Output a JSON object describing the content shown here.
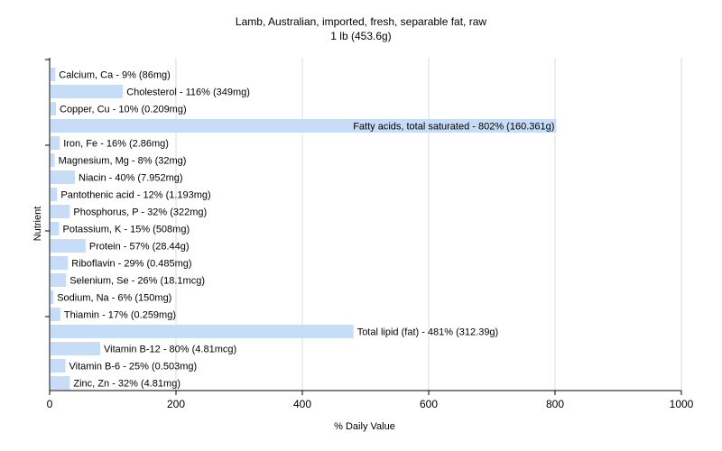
{
  "chart_data": {
    "type": "bar",
    "orientation": "horizontal",
    "title": "Lamb, Australian, imported, fresh, separable fat, raw",
    "subtitle": "1 lb (453.6g)",
    "xlabel": "% Daily Value",
    "ylabel": "Nutrient",
    "xlim": [
      0,
      1000
    ],
    "xticks": [
      "0",
      "200",
      "400",
      "600",
      "800",
      "1000"
    ],
    "grid": true,
    "bar_color": "#c6dcf7",
    "categories": [
      "Calcium, Ca",
      "Cholesterol",
      "Copper, Cu",
      "Fatty acids, total saturated",
      "Iron, Fe",
      "Magnesium, Mg",
      "Niacin",
      "Pantothenic acid",
      "Phosphorus, P",
      "Potassium, K",
      "Protein",
      "Riboflavin",
      "Selenium, Se",
      "Sodium, Na",
      "Thiamin",
      "Total lipid (fat)",
      "Vitamin B-12",
      "Vitamin B-6",
      "Zinc, Zn"
    ],
    "values": [
      9,
      116,
      10,
      802,
      16,
      8,
      40,
      12,
      32,
      15,
      57,
      29,
      26,
      6,
      17,
      481,
      80,
      25,
      32
    ],
    "labels": [
      "Calcium, Ca - 9% (86mg)",
      "Cholesterol - 116% (349mg)",
      "Copper, Cu - 10% (0.209mg)",
      "Fatty acids, total saturated - 802% (160.361g)",
      "Iron, Fe - 16% (2.86mg)",
      "Magnesium, Mg - 8% (32mg)",
      "Niacin - 40% (7.952mg)",
      "Pantothenic acid - 12% (1.193mg)",
      "Phosphorus, P - 32% (322mg)",
      "Potassium, K - 15% (508mg)",
      "Protein - 57% (28.44g)",
      "Riboflavin - 29% (0.485mg)",
      "Selenium, Se - 26% (18.1mcg)",
      "Sodium, Na - 6% (150mg)",
      "Thiamin - 17% (0.259mg)",
      "Total lipid (fat) - 481% (312.39g)",
      "Vitamin B-12 - 80% (4.81mcg)",
      "Vitamin B-6 - 25% (0.503mg)",
      "Zinc, Zn - 32% (4.81mg)"
    ]
  }
}
